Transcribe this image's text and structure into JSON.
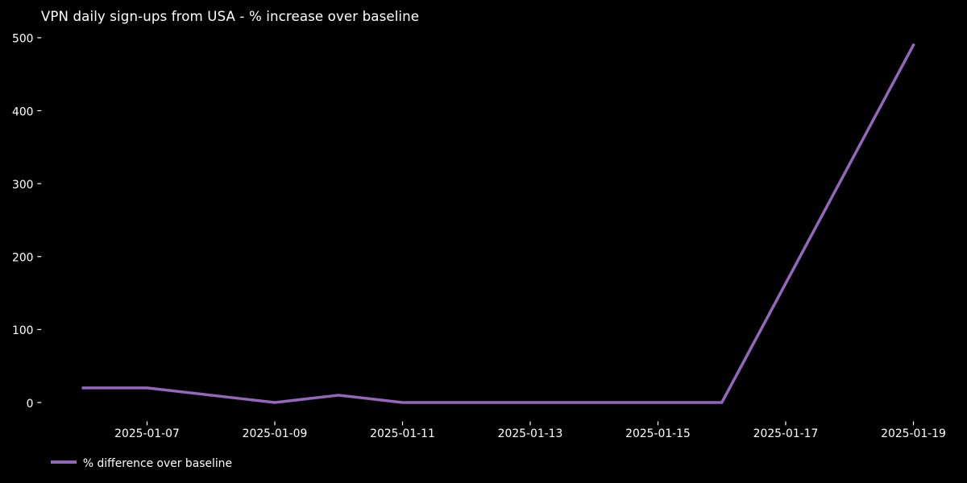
{
  "chart_data": {
    "type": "line",
    "title": "VPN daily sign-ups from USA - % increase over baseline",
    "x": [
      "2025-01-06",
      "2025-01-07",
      "2025-01-08",
      "2025-01-09",
      "2025-01-10",
      "2025-01-11",
      "2025-01-12",
      "2025-01-13",
      "2025-01-14",
      "2025-01-15",
      "2025-01-16",
      "2025-01-17",
      "2025-01-18",
      "2025-01-19"
    ],
    "series": [
      {
        "name": "% difference over baseline",
        "values": [
          20,
          20,
          10,
          0,
          10,
          0,
          0,
          0,
          0,
          0,
          0,
          163.3,
          326.7,
          490
        ]
      }
    ],
    "xlabel": "",
    "ylabel": "",
    "ylim": [
      0,
      500
    ],
    "y_ticks": [
      0,
      100,
      200,
      300,
      400,
      500
    ],
    "x_ticks": [
      {
        "i": 1,
        "label": "2025-01-07"
      },
      {
        "i": 3,
        "label": "2025-01-09"
      },
      {
        "i": 5,
        "label": "2025-01-11"
      },
      {
        "i": 7,
        "label": "2025-01-13"
      },
      {
        "i": 9,
        "label": "2025-01-15"
      },
      {
        "i": 11,
        "label": "2025-01-17"
      },
      {
        "i": 13,
        "label": "2025-01-19"
      }
    ],
    "grid": false,
    "legend": {
      "label": "% difference over baseline",
      "position": "lower-left"
    },
    "colors": {
      "background": "#000000",
      "text": "#ffffff",
      "line": "#9467bd",
      "tick": "#ffffff"
    }
  }
}
